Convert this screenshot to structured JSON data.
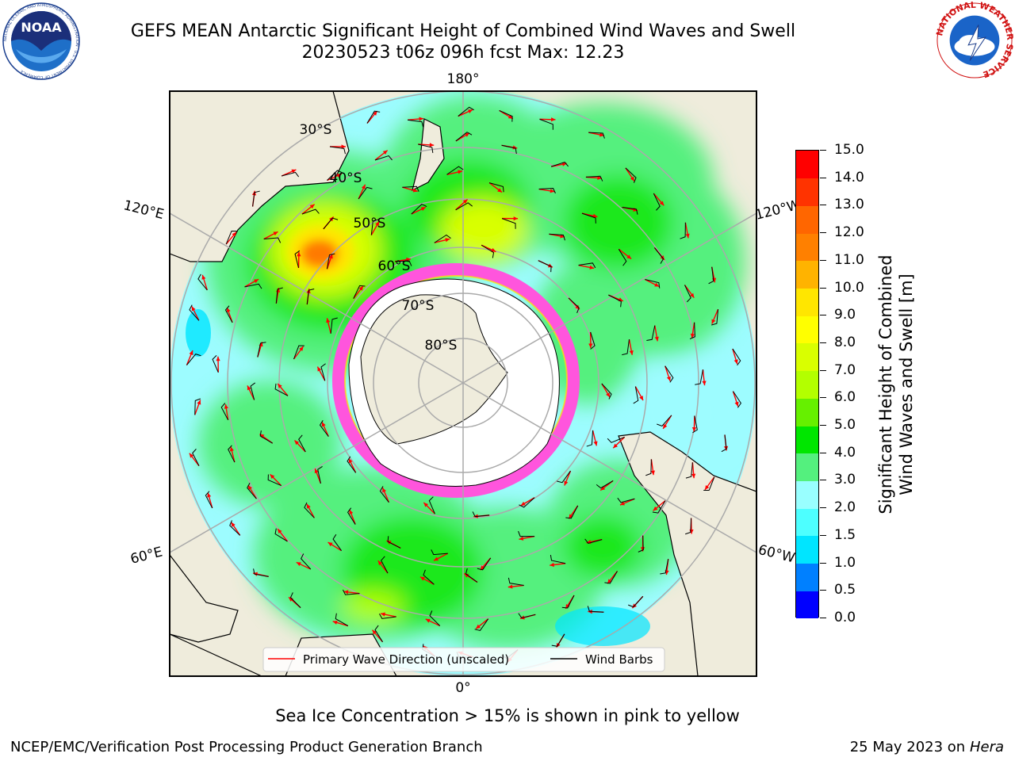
{
  "title": {
    "line1": "GEFS MEAN Antarctic Significant Height of Combined Wind Waves and Swell",
    "line2": "20230523 t06z 096h fcst   Max: 12.23"
  },
  "logos": {
    "noaa": "NOAA",
    "noaa_ring": "NATIONAL OCEANIC AND ATMOSPHERIC ADMINISTRATION · U.S. DEPARTMENT OF COMMERCE",
    "nws_ring": "NATIONAL WEATHER SERVICE"
  },
  "map": {
    "longitude_labels": {
      "top": "180°",
      "bottom": "0°",
      "upper_left": "120°E",
      "upper_right": "120°W",
      "lower_left": "60°E",
      "lower_right": "60°W"
    },
    "latitude_labels": [
      "30°S",
      "40°S",
      "50°S",
      "60°S",
      "70°S",
      "80°S"
    ],
    "legend": {
      "primary_wave": "Primary Wave Direction (unscaled)",
      "wind_barbs": "Wind Barbs"
    },
    "colors": {
      "land": "#efecdc",
      "antarctica": "#ffffff",
      "sea_ice": "#ff55dd",
      "low_wave": "#9dfcff",
      "mid_wave": "#54f07e",
      "green_wave": "#1ee81e",
      "high_wave": "#ffff00",
      "max_wave": "#ff7a00",
      "arrow": "#ff0000"
    }
  },
  "colorbar": {
    "title_line1": "Significant Height of Combined",
    "title_line2": "Wind Waves and Swell [m]",
    "ticks": [
      "0.0",
      "0.5",
      "1.0",
      "1.5",
      "2.0",
      "3.0",
      "4.0",
      "5.0",
      "6.0",
      "7.0",
      "8.0",
      "9.0",
      "10.0",
      "11.0",
      "12.0",
      "13.0",
      "14.0",
      "15.0"
    ],
    "colors": [
      "#0000ff",
      "#0080ff",
      "#00e5ff",
      "#4dffff",
      "#99ffff",
      "#54f07e",
      "#00e600",
      "#66f000",
      "#b3ff00",
      "#d9ff00",
      "#ffff00",
      "#ffe600",
      "#ffb300",
      "#ff8000",
      "#ff6600",
      "#ff3300",
      "#ff0000"
    ]
  },
  "footer": {
    "note": "Sea Ice Concentration > 15% is shown in pink to yellow",
    "credit": "NCEP/EMC/Verification Post Processing Product Generation Branch",
    "date": "25 May 2023 on",
    "host": "Hera"
  }
}
